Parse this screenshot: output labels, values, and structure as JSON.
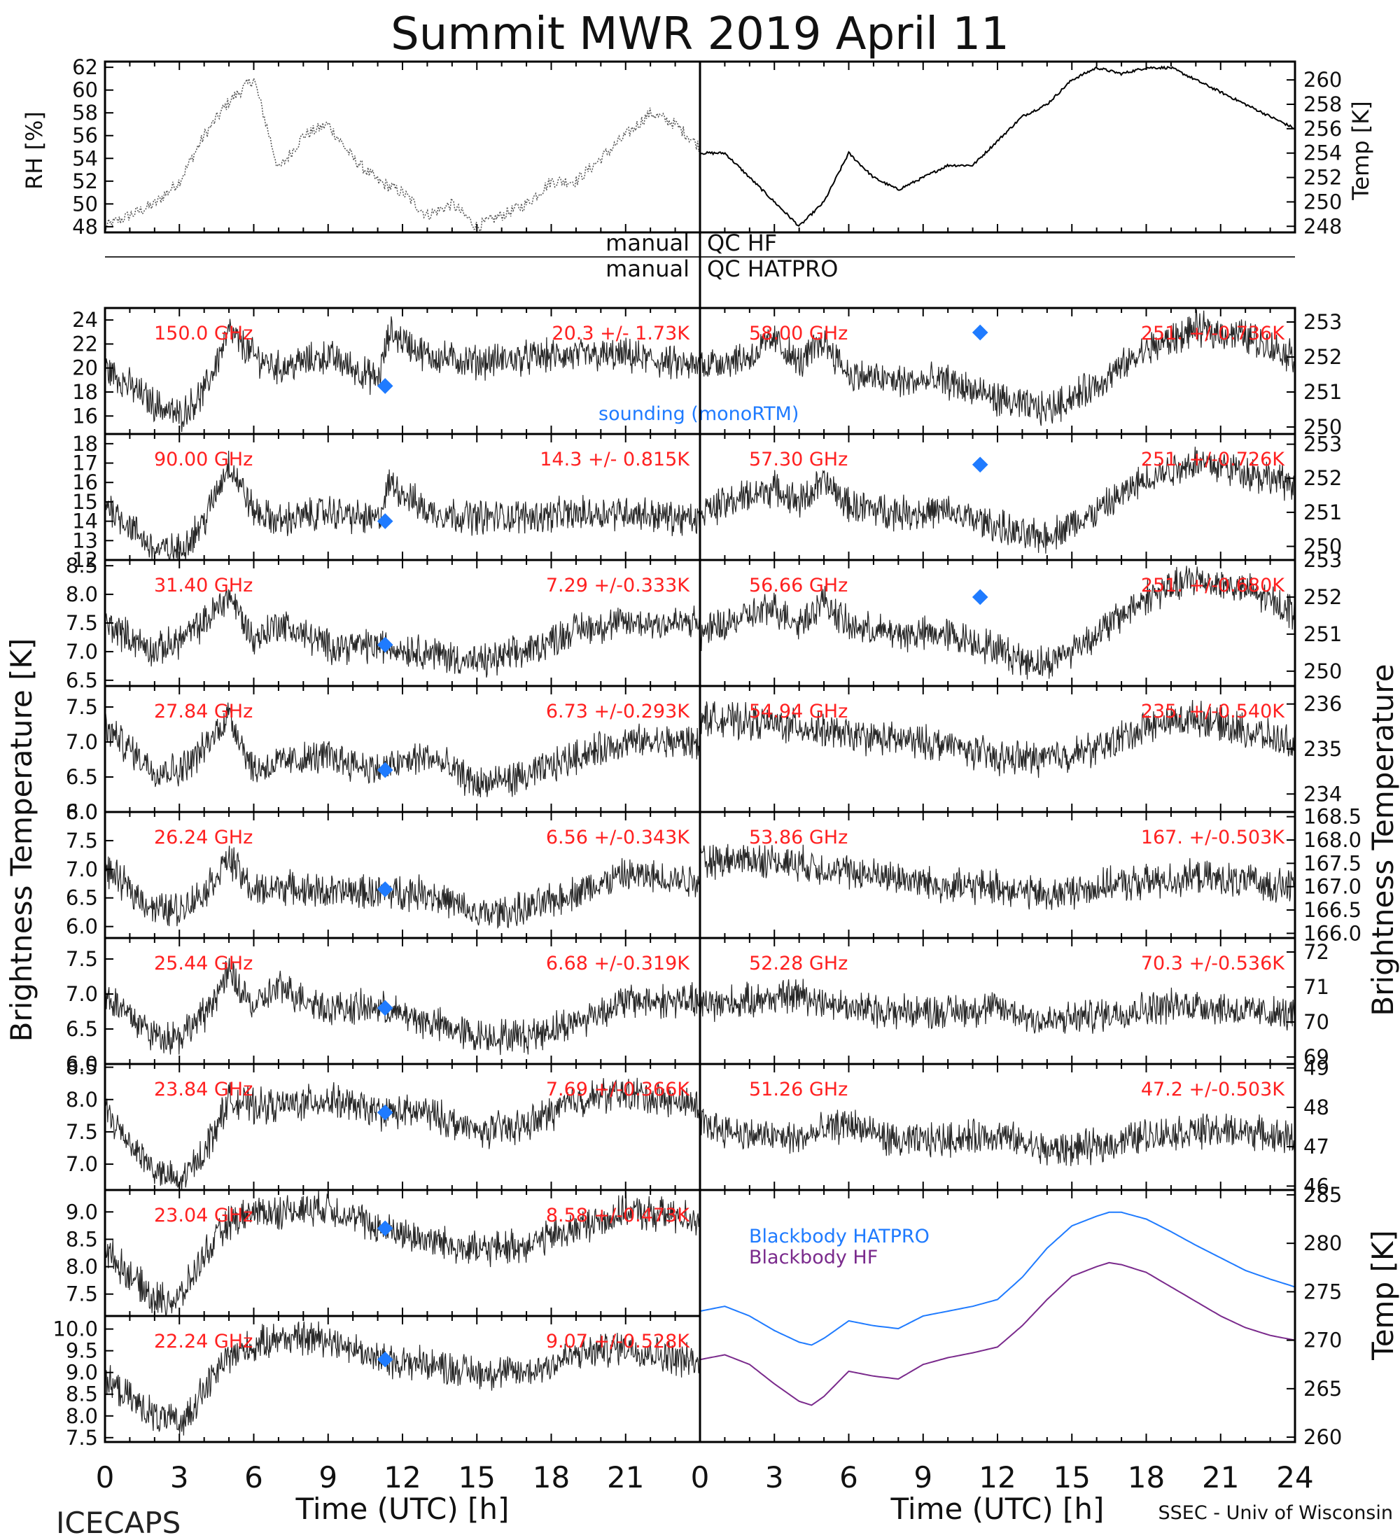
{
  "title": "Summit MWR 2019 April 11",
  "footer": {
    "left": "ICECAPS",
    "right": "SSEC - Univ of Wisconsin"
  },
  "qc_labels": {
    "hf_left": "manual",
    "hf_right": "QC HF",
    "hatpro_left": "manual",
    "hatpro_right": "QC HATPRO"
  },
  "axis_titles": {
    "left_main": "Brightness Temperature [K]",
    "right_main": "Brightness Temperature",
    "top_left": "RH [%]",
    "top_right": "Temp [K]",
    "bottom_right": "Temp [K]",
    "x_left": "Time (UTC) [h]",
    "x_right": "Time (UTC) [h]"
  },
  "x_ticks": [
    "0",
    "3",
    "6",
    "9",
    "12",
    "15",
    "18",
    "21",
    "24"
  ],
  "legend": {
    "sounding": "sounding (monoRTM)",
    "bb_hatpro": "Blackbody HATPRO",
    "bb_hf": "Blackbody HF"
  },
  "colors": {
    "trace": "#000000",
    "stats": "#ff2020",
    "sounding": "#1f7bff",
    "bb_hatpro": "#1f7bff",
    "bb_hf": "#7a2a8c"
  },
  "chart_data": [
    {
      "type": "line",
      "panel": "top-left",
      "ylabel": "RH [%]",
      "xlim": [
        0,
        24
      ],
      "ylim": [
        47.5,
        62.5
      ],
      "yticks": [
        "48",
        "50",
        "52",
        "54",
        "56",
        "58",
        "60",
        "62"
      ],
      "yticks_side": "left",
      "x": [
        0,
        1,
        2,
        3,
        4,
        5,
        6,
        7,
        8,
        9,
        10,
        11,
        12,
        13,
        14,
        15,
        16,
        17,
        18,
        19,
        20,
        21,
        22,
        23,
        24
      ],
      "y": [
        48,
        49,
        50,
        52,
        56,
        59,
        61,
        53,
        56,
        57,
        54,
        52,
        51,
        49,
        50,
        48,
        49,
        50,
        52,
        52,
        54,
        56,
        58,
        57,
        55
      ]
    },
    {
      "type": "line",
      "panel": "top-right",
      "ylabel": "Temp [K]",
      "xlim": [
        0,
        24
      ],
      "ylim": [
        247.5,
        261.5
      ],
      "yticks": [
        "248",
        "250",
        "252",
        "254",
        "256",
        "258",
        "260"
      ],
      "yticks_side": "right",
      "x": [
        0,
        1,
        2,
        3,
        4,
        5,
        6,
        7,
        8,
        9,
        10,
        11,
        12,
        13,
        14,
        15,
        16,
        17,
        18,
        19,
        20,
        21,
        22,
        23,
        24
      ],
      "y": [
        254,
        254,
        252,
        250,
        248,
        250,
        254,
        252,
        251,
        252,
        253,
        253,
        255,
        257,
        258,
        260,
        261,
        260.5,
        261,
        261,
        260,
        259,
        258,
        257,
        256
      ]
    },
    {
      "type": "scatter",
      "panel": "left-1",
      "freq_label": "150.0 GHz",
      "stats_label": "20.3 +/- 1.73K",
      "ylim": [
        14.5,
        25
      ],
      "yticks": [
        "16",
        "18",
        "20",
        "22",
        "24"
      ],
      "yticks_side": "left",
      "x": [
        0,
        2,
        3,
        4,
        5,
        6,
        7,
        9,
        11,
        11.5,
        13,
        15,
        18,
        21,
        24
      ],
      "y": [
        20,
        17,
        16,
        18,
        23,
        21,
        20,
        21,
        19,
        23,
        21,
        20.5,
        21,
        21,
        20
      ],
      "sounding": {
        "x": 11.3,
        "y": 18.5
      }
    },
    {
      "type": "scatter",
      "panel": "left-2",
      "freq_label": "90.00 GHz",
      "stats_label": "14.3 +/- 0.815K",
      "ylim": [
        12,
        18.5
      ],
      "yticks": [
        "12",
        "13",
        "14",
        "15",
        "16",
        "17",
        "18"
      ],
      "yticks_side": "left",
      "x": [
        0,
        2,
        3,
        4,
        5,
        6,
        7,
        9,
        11,
        11.5,
        13,
        15,
        18,
        21,
        24
      ],
      "y": [
        15,
        12.5,
        12.5,
        14,
        17,
        14.5,
        14,
        14.5,
        14,
        16,
        14.5,
        14.2,
        14.3,
        14.5,
        14
      ],
      "sounding": {
        "x": 11.3,
        "y": 14.0
      }
    },
    {
      "type": "scatter",
      "panel": "left-3",
      "freq_label": "31.40 GHz",
      "stats_label": "7.29 +/-0.333K",
      "ylim": [
        6.4,
        8.6
      ],
      "yticks": [
        "6.5",
        "7.0",
        "7.5",
        "8.0",
        "8.5"
      ],
      "yticks_side": "left",
      "x": [
        0,
        2,
        3,
        4,
        5,
        6,
        7,
        9,
        11,
        13,
        15,
        17,
        19,
        21,
        24
      ],
      "y": [
        7.5,
        7.0,
        7.2,
        7.5,
        8.0,
        7.2,
        7.5,
        7.1,
        7.1,
        7.0,
        6.8,
        7.0,
        7.4,
        7.5,
        7.5
      ],
      "sounding": {
        "x": 11.3,
        "y": 7.12
      }
    },
    {
      "type": "scatter",
      "panel": "left-4",
      "freq_label": "27.84 GHz",
      "stats_label": "6.73 +/-0.293K",
      "ylim": [
        6.0,
        7.8
      ],
      "yticks": [
        "6.0",
        "6.5",
        "7.0",
        "7.5"
      ],
      "yticks_side": "left",
      "x": [
        0,
        2,
        3,
        4,
        5,
        6,
        7,
        9,
        11,
        13,
        15,
        17,
        19,
        21,
        24
      ],
      "y": [
        7.2,
        6.6,
        6.6,
        6.9,
        7.4,
        6.6,
        6.7,
        6.8,
        6.6,
        6.8,
        6.4,
        6.5,
        6.8,
        7.0,
        7.0
      ],
      "sounding": {
        "x": 11.3,
        "y": 6.6
      }
    },
    {
      "type": "scatter",
      "panel": "left-5",
      "freq_label": "26.24 GHz",
      "stats_label": "6.56 +/-0.343K",
      "ylim": [
        5.8,
        8.0
      ],
      "yticks": [
        "6.0",
        "6.5",
        "7.0",
        "7.5",
        "8.0"
      ],
      "yticks_side": "left",
      "x": [
        0,
        2,
        3,
        4,
        5,
        6,
        7,
        9,
        11,
        13,
        15,
        17,
        19,
        21,
        24
      ],
      "y": [
        7.0,
        6.3,
        6.3,
        6.6,
        7.2,
        6.6,
        6.7,
        6.6,
        6.6,
        6.6,
        6.2,
        6.3,
        6.6,
        6.9,
        6.8
      ],
      "sounding": {
        "x": 11.3,
        "y": 6.65
      }
    },
    {
      "type": "scatter",
      "panel": "left-6",
      "freq_label": "25.44 GHz",
      "stats_label": "6.68 +/-0.319K",
      "ylim": [
        6.0,
        7.8
      ],
      "yticks": [
        "6.0",
        "6.5",
        "7.0",
        "7.5"
      ],
      "yticks_side": "left",
      "x": [
        0,
        2,
        3,
        4,
        5,
        6,
        7,
        9,
        11,
        13,
        15,
        17,
        19,
        21,
        24
      ],
      "y": [
        7.0,
        6.4,
        6.4,
        6.7,
        7.3,
        6.8,
        7.1,
        6.8,
        6.8,
        6.6,
        6.4,
        6.4,
        6.6,
        6.9,
        6.9
      ],
      "sounding": {
        "x": 11.3,
        "y": 6.8
      }
    },
    {
      "type": "scatter",
      "panel": "left-7",
      "freq_label": "23.84 GHz",
      "stats_label": "7.69 +/-0.366K",
      "ylim": [
        6.6,
        8.55
      ],
      "yticks": [
        "7.0",
        "7.5",
        "8.0",
        "8.5"
      ],
      "yticks_side": "left",
      "x": [
        0,
        2,
        3,
        4,
        5,
        6,
        7,
        9,
        11,
        13,
        15,
        17,
        19,
        21,
        24
      ],
      "y": [
        7.8,
        6.9,
        6.7,
        7.2,
        8.0,
        7.9,
        7.9,
        8.0,
        7.8,
        7.8,
        7.5,
        7.6,
        8.0,
        8.1,
        7.9
      ],
      "sounding": {
        "x": 11.3,
        "y": 7.8
      }
    },
    {
      "type": "scatter",
      "panel": "left-8",
      "freq_label": "23.04 GHz",
      "stats_label": "8.58 +/-0.473K",
      "ylim": [
        7.1,
        9.4
      ],
      "yticks": [
        "7.5",
        "8.0",
        "8.5",
        "9.0"
      ],
      "yticks_side": "left",
      "x": [
        0,
        2,
        3,
        4,
        5,
        6,
        7,
        9,
        11,
        13,
        15,
        17,
        19,
        21,
        24
      ],
      "y": [
        8.3,
        7.4,
        7.4,
        8.2,
        8.8,
        9.0,
        9.0,
        9.1,
        8.7,
        8.5,
        8.3,
        8.4,
        8.7,
        9.0,
        8.9
      ],
      "sounding": {
        "x": 11.3,
        "y": 8.7
      }
    },
    {
      "type": "scatter",
      "panel": "left-9",
      "freq_label": "22.24 GHz",
      "stats_label": "9.07 +/-0.528K",
      "ylim": [
        7.4,
        10.3
      ],
      "yticks": [
        "7.5",
        "8.0",
        "8.5",
        "9.0",
        "9.5",
        "10.0"
      ],
      "yticks_side": "left",
      "x": [
        0,
        2,
        3,
        4,
        5,
        6,
        7,
        9,
        11,
        13,
        15,
        17,
        19,
        21,
        24
      ],
      "y": [
        8.8,
        8.0,
        7.8,
        8.6,
        9.4,
        9.6,
        9.8,
        9.8,
        9.3,
        9.2,
        9.0,
        9.0,
        9.4,
        9.6,
        9.2
      ],
      "sounding": {
        "x": 11.3,
        "y": 9.3
      }
    },
    {
      "type": "scatter",
      "panel": "right-1",
      "freq_label": "58.00 GHz",
      "stats_label": "251. +/-0.736K",
      "ylim": [
        249.8,
        253.4
      ],
      "yticks": [
        "250",
        "251",
        "252",
        "253"
      ],
      "yticks_side": "right",
      "x": [
        0,
        2,
        3,
        4,
        5,
        6,
        8,
        10,
        12,
        13,
        14,
        16,
        18,
        20,
        22,
        24
      ],
      "y": [
        251.8,
        252.0,
        252.5,
        251.8,
        252.5,
        251.5,
        251.3,
        251.3,
        250.8,
        250.6,
        250.5,
        251.2,
        252.2,
        252.8,
        252.6,
        252.0
      ],
      "sounding": {
        "x": 11.3,
        "y": 252.7
      }
    },
    {
      "type": "scatter",
      "panel": "right-2",
      "freq_label": "57.30 GHz",
      "stats_label": "251. +/-0.726K",
      "ylim": [
        249.6,
        253.3
      ],
      "yticks": [
        "250",
        "251",
        "252",
        "253"
      ],
      "yticks_side": "right",
      "x": [
        0,
        2,
        3,
        4,
        5,
        6,
        8,
        10,
        12,
        13,
        14,
        16,
        18,
        20,
        22,
        24
      ],
      "y": [
        251.0,
        251.5,
        251.7,
        251.3,
        251.9,
        251.2,
        251.0,
        251.0,
        250.6,
        250.3,
        250.3,
        251.0,
        252.0,
        252.5,
        252.2,
        251.8
      ],
      "sounding": {
        "x": 11.3,
        "y": 252.4
      }
    },
    {
      "type": "scatter",
      "panel": "right-3",
      "freq_label": "56.66 GHz",
      "stats_label": "251. +/-0.680K",
      "ylim": [
        249.6,
        253.0
      ],
      "yticks": [
        "250",
        "251",
        "252",
        "253"
      ],
      "yticks_side": "right",
      "x": [
        0,
        2,
        3,
        4,
        5,
        6,
        8,
        10,
        12,
        13,
        14,
        16,
        18,
        20,
        22,
        24
      ],
      "y": [
        251.0,
        251.5,
        251.7,
        251.3,
        251.9,
        251.2,
        251.0,
        251.0,
        250.6,
        250.3,
        250.2,
        251.0,
        252.0,
        252.5,
        252.2,
        251.6
      ],
      "sounding": {
        "x": 11.3,
        "y": 252.0
      }
    },
    {
      "type": "scatter",
      "panel": "right-4",
      "freq_label": "54.94 GHz",
      "stats_label": "235. +/-0.540K",
      "ylim": [
        233.6,
        236.4
      ],
      "yticks": [
        "234",
        "235",
        "236"
      ],
      "yticks_side": "right",
      "x": [
        0,
        2,
        4,
        6,
        8,
        10,
        12,
        14,
        16,
        18,
        20,
        22,
        24
      ],
      "y": [
        235.7,
        235.6,
        235.5,
        235.3,
        235.2,
        235.1,
        234.8,
        234.8,
        235.0,
        235.5,
        235.7,
        235.4,
        235.1
      ]
    },
    {
      "type": "scatter",
      "panel": "right-5",
      "freq_label": "53.86 GHz",
      "stats_label": "167. +/-0.503K",
      "ylim": [
        165.9,
        168.6
      ],
      "yticks": [
        "166.0",
        "166.5",
        "167.0",
        "167.5",
        "168.0",
        "168.5"
      ],
      "yticks_side": "right",
      "x": [
        0,
        2,
        4,
        6,
        8,
        10,
        12,
        14,
        16,
        18,
        20,
        22,
        24
      ],
      "y": [
        167.5,
        167.6,
        167.5,
        167.3,
        167.2,
        167.0,
        167.0,
        166.8,
        167.0,
        167.1,
        167.2,
        167.1,
        167.0
      ]
    },
    {
      "type": "scatter",
      "panel": "right-6",
      "freq_label": "52.28 GHz",
      "stats_label": "70.3 +/-0.536K",
      "ylim": [
        68.8,
        72.4
      ],
      "yticks": [
        "69",
        "70",
        "71",
        "72"
      ],
      "yticks_side": "right",
      "x": [
        0,
        2,
        4,
        6,
        8,
        10,
        12,
        14,
        16,
        18,
        20,
        22,
        24
      ],
      "y": [
        70.5,
        70.6,
        70.8,
        70.4,
        70.3,
        70.3,
        70.4,
        70.0,
        70.2,
        70.4,
        70.5,
        70.3,
        70.2
      ]
    },
    {
      "type": "scatter",
      "panel": "right-7",
      "freq_label": "51.26 GHz",
      "stats_label": "47.2 +/-0.503K",
      "ylim": [
        45.9,
        49.1
      ],
      "yticks": [
        "46",
        "47",
        "48",
        "49"
      ],
      "yticks_side": "right",
      "x": [
        0,
        2,
        4,
        6,
        8,
        10,
        12,
        14,
        16,
        18,
        20,
        22,
        24
      ],
      "y": [
        47.6,
        47.3,
        47.2,
        47.6,
        47.1,
        47.2,
        47.3,
        46.9,
        47.0,
        47.3,
        47.4,
        47.4,
        47.2
      ]
    },
    {
      "type": "line",
      "panel": "blackbody",
      "ylabel": "Temp [K]",
      "xlim": [
        0,
        24
      ],
      "ylim": [
        259.5,
        285.5
      ],
      "yticks": [
        "260",
        "265",
        "270",
        "275",
        "280",
        "285"
      ],
      "yticks_side": "right",
      "x": [
        0,
        1,
        2,
        3,
        4,
        4.5,
        5,
        6,
        7,
        8,
        9,
        10,
        11,
        12,
        13,
        14,
        15,
        16,
        16.5,
        17,
        18,
        19,
        20,
        21,
        22,
        23,
        24
      ],
      "series": [
        {
          "name": "Blackbody HATPRO",
          "values": [
            273,
            273.5,
            272.5,
            271,
            269.8,
            269.5,
            270.2,
            272,
            271.5,
            271.2,
            272.5,
            273,
            273.5,
            274.2,
            276.5,
            279.5,
            281.8,
            282.8,
            283.2,
            283.2,
            282.5,
            281.2,
            279.8,
            278.5,
            277.2,
            276.3,
            275.5
          ]
        },
        {
          "name": "Blackbody HF",
          "values": [
            268,
            268.5,
            267.5,
            265.5,
            263.7,
            263.3,
            264.2,
            266.8,
            266.3,
            266.0,
            267.5,
            268.2,
            268.7,
            269.3,
            271.5,
            274.2,
            276.6,
            277.6,
            278.0,
            277.8,
            277.0,
            275.5,
            274.0,
            272.5,
            271.3,
            270.5,
            270.0
          ]
        }
      ]
    }
  ]
}
